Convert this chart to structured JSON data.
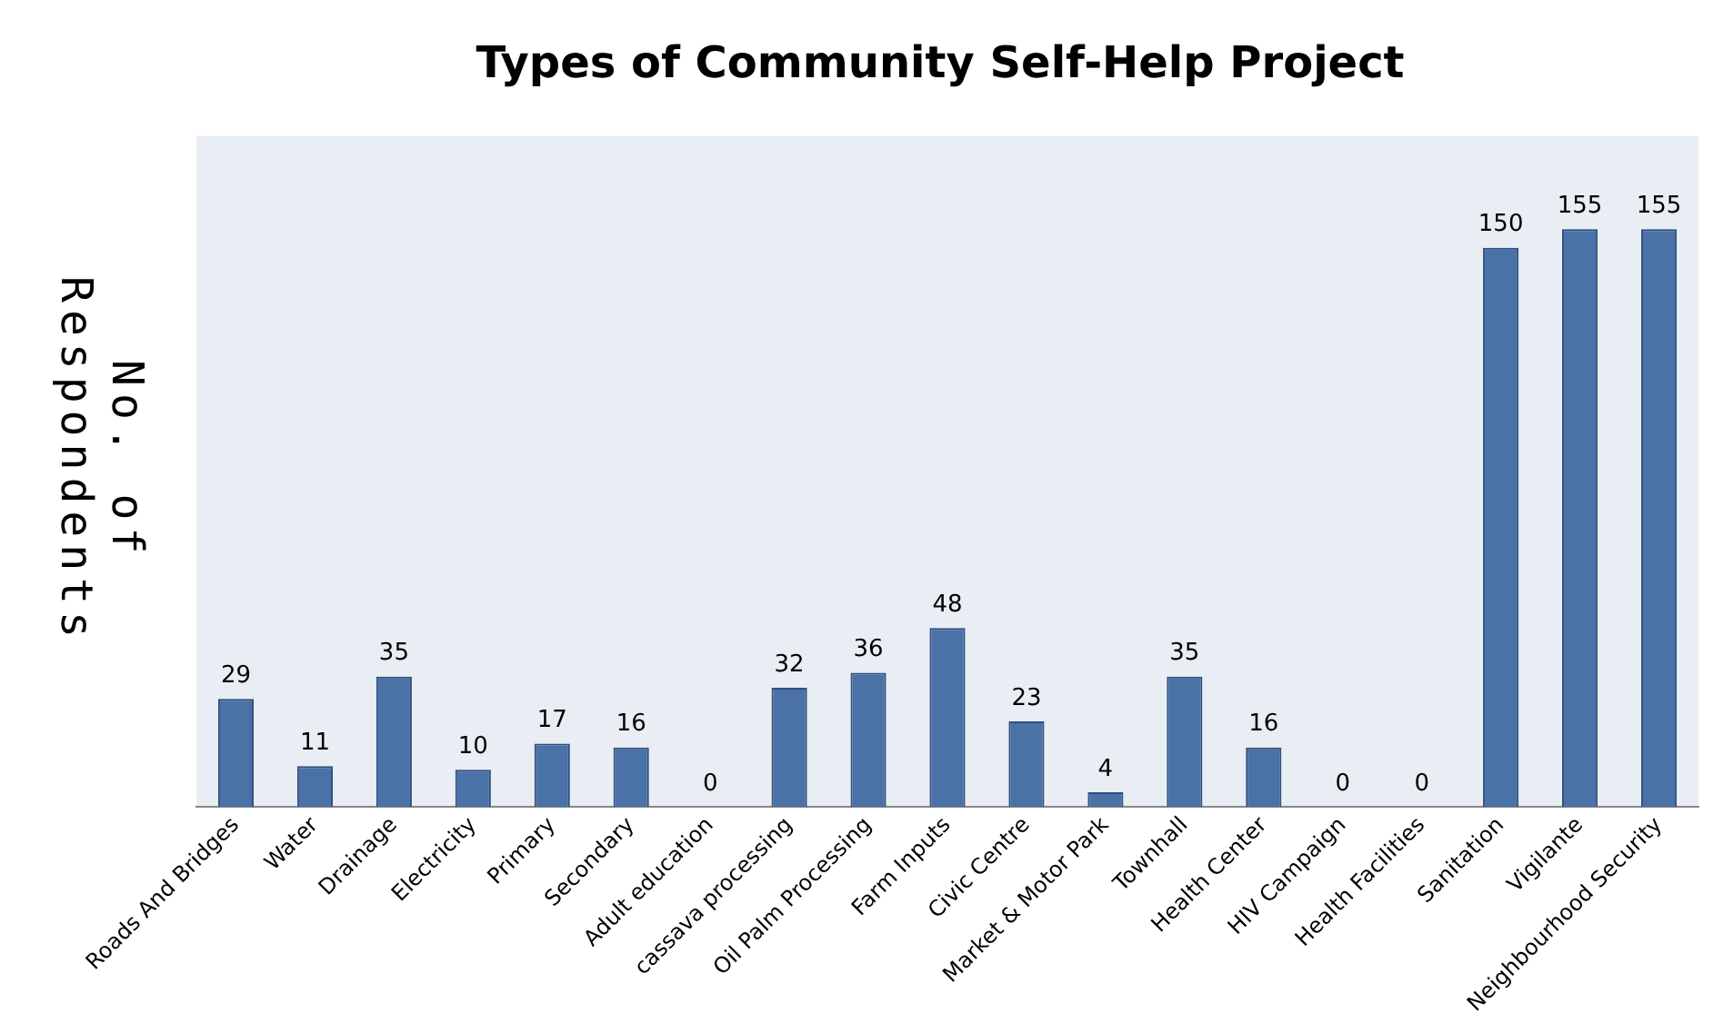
{
  "chart_data": {
    "type": "bar",
    "title": "Types of Community Self-Help Project",
    "ylabel": "No. of Respondents",
    "categories": [
      "Roads And Bridges",
      "Water",
      "Drainage",
      "Electricity",
      "Primary",
      "Secondary",
      "Adult education",
      "cassava processing",
      "Oil Palm Processing",
      "Farm Inputs",
      "Civic Centre",
      "Market & Motor Park",
      "Townhall",
      "Health Center",
      "HIV Campaign",
      "Health Facilities",
      "Sanitation",
      "Vigilante",
      "Neighbourhood Security"
    ],
    "values": [
      29,
      11,
      35,
      10,
      17,
      16,
      0,
      32,
      36,
      48,
      23,
      4,
      35,
      16,
      0,
      0,
      150,
      155,
      155
    ],
    "color": "#4a72a6",
    "data_labels": true,
    "grid": false,
    "legend": false
  }
}
